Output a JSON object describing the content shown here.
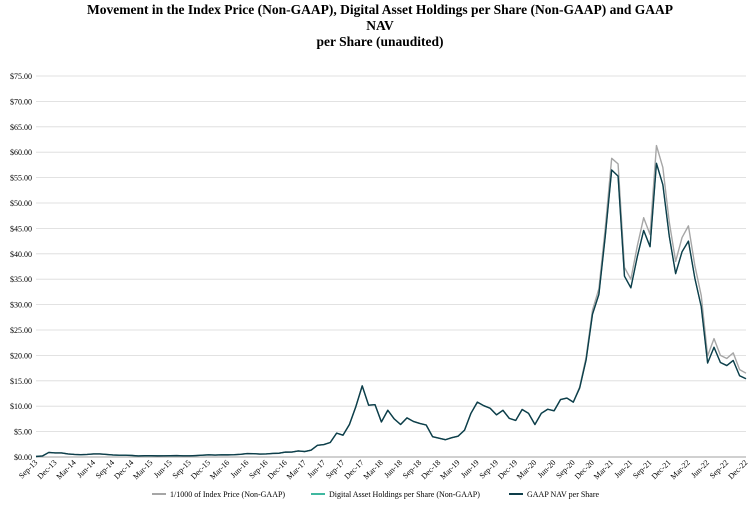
{
  "chart_data": {
    "type": "line",
    "title_lines": [
      "Movement in the Index Price (Non-GAAP), Digital Asset Holdings per Share (Non-GAAP) and GAAP",
      "NAV",
      "per Share (unaudited)"
    ],
    "xlabel": "",
    "ylabel": "",
    "ylim": [
      0,
      75
    ],
    "y_ticks": [
      0,
      5,
      10,
      15,
      20,
      25,
      30,
      35,
      40,
      45,
      50,
      55,
      60,
      65,
      70,
      75
    ],
    "y_tick_labels": [
      "$0.00",
      "$5.00",
      "$10.00",
      "$15.00",
      "$20.00",
      "$25.00",
      "$30.00",
      "$35.00",
      "$40.00",
      "$45.00",
      "$50.00",
      "$55.00",
      "$60.00",
      "$65.00",
      "$70.00",
      "$75.00"
    ],
    "x_start": "2013-09",
    "x_end": "2022-12",
    "x_tick_labels": [
      "Sep-13",
      "Dec-13",
      "Mar-14",
      "Jun-14",
      "Sep-14",
      "Dec-14",
      "Mar-15",
      "Jun-15",
      "Sep-15",
      "Dec-15",
      "Mar-16",
      "Jun-16",
      "Sep-16",
      "Dec-16",
      "Mar-17",
      "Jun-17",
      "Sep-17",
      "Dec-17",
      "Mar-18",
      "Jun-18",
      "Sep-18",
      "Dec-18",
      "Mar-19",
      "Jun-19",
      "Sep-19",
      "Dec-19",
      "Mar-20",
      "Jun-20",
      "Sep-20",
      "Dec-20",
      "Mar-21",
      "Jun-21",
      "Sep-21",
      "Dec-21",
      "Mar-22",
      "Jun-22",
      "Sep-22",
      "Dec-22"
    ],
    "grid": true,
    "legend_position": "bottom",
    "series": [
      {
        "name": "1/1000 of Index Price (Non-GAAP)",
        "color": "#a6a6a6",
        "x": [
          "2013-09",
          "2013-10",
          "2013-11",
          "2013-12",
          "2014-01",
          "2014-02",
          "2014-03",
          "2014-04",
          "2014-05",
          "2014-06",
          "2014-07",
          "2014-08",
          "2014-09",
          "2014-10",
          "2014-11",
          "2014-12",
          "2015-01",
          "2015-02",
          "2015-03",
          "2015-04",
          "2015-05",
          "2015-06",
          "2015-07",
          "2015-08",
          "2015-09",
          "2015-10",
          "2015-11",
          "2015-12",
          "2016-01",
          "2016-02",
          "2016-03",
          "2016-04",
          "2016-05",
          "2016-06",
          "2016-07",
          "2016-08",
          "2016-09",
          "2016-10",
          "2016-11",
          "2016-12",
          "2017-01",
          "2017-02",
          "2017-03",
          "2017-04",
          "2017-05",
          "2017-06",
          "2017-07",
          "2017-08",
          "2017-09",
          "2017-10",
          "2017-11",
          "2017-12",
          "2018-01",
          "2018-02",
          "2018-03",
          "2018-04",
          "2018-05",
          "2018-06",
          "2018-07",
          "2018-08",
          "2018-09",
          "2018-10",
          "2018-11",
          "2018-12",
          "2019-01",
          "2019-02",
          "2019-03",
          "2019-04",
          "2019-05",
          "2019-06",
          "2019-07",
          "2019-08",
          "2019-09",
          "2019-10",
          "2019-11",
          "2019-12",
          "2020-01",
          "2020-02",
          "2020-03",
          "2020-04",
          "2020-05",
          "2020-06",
          "2020-07",
          "2020-08",
          "2020-09",
          "2020-10",
          "2020-11",
          "2020-12",
          "2021-01",
          "2021-02",
          "2021-03",
          "2021-04",
          "2021-05",
          "2021-06",
          "2021-07",
          "2021-08",
          "2021-09",
          "2021-10",
          "2021-11",
          "2021-12",
          "2022-01",
          "2022-02",
          "2022-03",
          "2022-04",
          "2022-05",
          "2022-06",
          "2022-07",
          "2022-08",
          "2022-09",
          "2022-10",
          "2022-11",
          "2022-12"
        ],
        "y": [
          0.1,
          0.2,
          0.9,
          0.8,
          0.8,
          0.6,
          0.5,
          0.45,
          0.5,
          0.6,
          0.6,
          0.5,
          0.4,
          0.35,
          0.35,
          0.3,
          0.2,
          0.25,
          0.25,
          0.22,
          0.23,
          0.25,
          0.28,
          0.23,
          0.23,
          0.28,
          0.35,
          0.43,
          0.38,
          0.43,
          0.42,
          0.45,
          0.53,
          0.67,
          0.65,
          0.58,
          0.61,
          0.7,
          0.74,
          0.96,
          0.97,
          1.19,
          1.08,
          1.35,
          2.3,
          2.45,
          2.85,
          4.7,
          4.3,
          6.4,
          9.9,
          14.0,
          10.2,
          10.3,
          6.9,
          9.2,
          7.5,
          6.4,
          7.7,
          7.0,
          6.6,
          6.3,
          4.0,
          3.7,
          3.4,
          3.8,
          4.1,
          5.3,
          8.6,
          10.8,
          10.1,
          9.6,
          8.3,
          9.2,
          7.6,
          7.2,
          9.35,
          8.6,
          6.4,
          8.6,
          9.4,
          9.1,
          11.3,
          11.6,
          10.8,
          13.8,
          19.6,
          28.9,
          33.1,
          45.1,
          58.8,
          57.7,
          37.3,
          35.0,
          41.5,
          47.1,
          43.8,
          61.3,
          57.0,
          46.3,
          38.5,
          43.2,
          45.5,
          37.7,
          31.8,
          19.9,
          23.3,
          20.0,
          19.4,
          20.5,
          17.2,
          16.5
        ]
      },
      {
        "name": "Digital Asset Holdings per Share (Non-GAAP)",
        "color": "#3fb8a0",
        "x": [
          "2013-09",
          "2013-10",
          "2013-11",
          "2013-12",
          "2014-01",
          "2014-02",
          "2014-03",
          "2014-04",
          "2014-05",
          "2014-06",
          "2014-07",
          "2014-08",
          "2014-09",
          "2014-10",
          "2014-11",
          "2014-12",
          "2015-01",
          "2015-02",
          "2015-03",
          "2015-04",
          "2015-05",
          "2015-06",
          "2015-07",
          "2015-08",
          "2015-09",
          "2015-10",
          "2015-11",
          "2015-12",
          "2016-01",
          "2016-02",
          "2016-03",
          "2016-04",
          "2016-05",
          "2016-06",
          "2016-07",
          "2016-08",
          "2016-09",
          "2016-10",
          "2016-11",
          "2016-12",
          "2017-01",
          "2017-02",
          "2017-03",
          "2017-04",
          "2017-05",
          "2017-06",
          "2017-07",
          "2017-08",
          "2017-09",
          "2017-10",
          "2017-11",
          "2017-12",
          "2018-01",
          "2018-02",
          "2018-03",
          "2018-04",
          "2018-05",
          "2018-06",
          "2018-07",
          "2018-08",
          "2018-09",
          "2018-10",
          "2018-11",
          "2018-12",
          "2019-01",
          "2019-02",
          "2019-03",
          "2019-04",
          "2019-05",
          "2019-06",
          "2019-07",
          "2019-08",
          "2019-09",
          "2019-10",
          "2019-11",
          "2019-12",
          "2020-01",
          "2020-02",
          "2020-03",
          "2020-04",
          "2020-05",
          "2020-06",
          "2020-07",
          "2020-08",
          "2020-09",
          "2020-10",
          "2020-11",
          "2020-12",
          "2021-01",
          "2021-02",
          "2021-03",
          "2021-04",
          "2021-05",
          "2021-06",
          "2021-07",
          "2021-08",
          "2021-09",
          "2021-10",
          "2021-11",
          "2021-12",
          "2022-01",
          "2022-02",
          "2022-03",
          "2022-04",
          "2022-05",
          "2022-06",
          "2022-07",
          "2022-08",
          "2022-09",
          "2022-10",
          "2022-11",
          "2022-12"
        ],
        "y": [
          0.1,
          0.2,
          0.9,
          0.8,
          0.8,
          0.6,
          0.5,
          0.45,
          0.5,
          0.6,
          0.6,
          0.5,
          0.4,
          0.35,
          0.35,
          0.3,
          0.2,
          0.25,
          0.25,
          0.22,
          0.23,
          0.25,
          0.28,
          0.23,
          0.23,
          0.28,
          0.35,
          0.43,
          0.38,
          0.43,
          0.42,
          0.45,
          0.53,
          0.67,
          0.65,
          0.58,
          0.61,
          0.7,
          0.74,
          0.96,
          0.97,
          1.19,
          1.08,
          1.35,
          2.3,
          2.45,
          2.85,
          4.7,
          4.3,
          6.4,
          9.9,
          14.0,
          10.2,
          10.3,
          6.9,
          9.2,
          7.5,
          6.4,
          7.7,
          7.0,
          6.6,
          6.3,
          4.0,
          3.7,
          3.4,
          3.8,
          4.1,
          5.3,
          8.6,
          10.8,
          10.1,
          9.6,
          8.3,
          9.2,
          7.6,
          7.2,
          9.35,
          8.6,
          6.4,
          8.6,
          9.4,
          9.1,
          11.3,
          11.6,
          10.8,
          13.6,
          19.1,
          28.1,
          32.0,
          43.5,
          56.5,
          55.3,
          35.6,
          33.3,
          39.4,
          44.6,
          41.4,
          57.8,
          53.6,
          43.5,
          36.1,
          40.4,
          42.5,
          35.2,
          29.6,
          18.5,
          21.6,
          18.6,
          18.0,
          19.0,
          16.0,
          15.4
        ]
      },
      {
        "name": "GAAP NAV per Share",
        "color": "#0e3d4a",
        "x": [
          "2013-09",
          "2013-10",
          "2013-11",
          "2013-12",
          "2014-01",
          "2014-02",
          "2014-03",
          "2014-04",
          "2014-05",
          "2014-06",
          "2014-07",
          "2014-08",
          "2014-09",
          "2014-10",
          "2014-11",
          "2014-12",
          "2015-01",
          "2015-02",
          "2015-03",
          "2015-04",
          "2015-05",
          "2015-06",
          "2015-07",
          "2015-08",
          "2015-09",
          "2015-10",
          "2015-11",
          "2015-12",
          "2016-01",
          "2016-02",
          "2016-03",
          "2016-04",
          "2016-05",
          "2016-06",
          "2016-07",
          "2016-08",
          "2016-09",
          "2016-10",
          "2016-11",
          "2016-12",
          "2017-01",
          "2017-02",
          "2017-03",
          "2017-04",
          "2017-05",
          "2017-06",
          "2017-07",
          "2017-08",
          "2017-09",
          "2017-10",
          "2017-11",
          "2017-12",
          "2018-01",
          "2018-02",
          "2018-03",
          "2018-04",
          "2018-05",
          "2018-06",
          "2018-07",
          "2018-08",
          "2018-09",
          "2018-10",
          "2018-11",
          "2018-12",
          "2019-01",
          "2019-02",
          "2019-03",
          "2019-04",
          "2019-05",
          "2019-06",
          "2019-07",
          "2019-08",
          "2019-09",
          "2019-10",
          "2019-11",
          "2019-12",
          "2020-01",
          "2020-02",
          "2020-03",
          "2020-04",
          "2020-05",
          "2020-06",
          "2020-07",
          "2020-08",
          "2020-09",
          "2020-10",
          "2020-11",
          "2020-12",
          "2021-01",
          "2021-02",
          "2021-03",
          "2021-04",
          "2021-05",
          "2021-06",
          "2021-07",
          "2021-08",
          "2021-09",
          "2021-10",
          "2021-11",
          "2021-12",
          "2022-01",
          "2022-02",
          "2022-03",
          "2022-04",
          "2022-05",
          "2022-06",
          "2022-07",
          "2022-08",
          "2022-09",
          "2022-10",
          "2022-11",
          "2022-12"
        ],
        "y": [
          0.1,
          0.2,
          0.9,
          0.8,
          0.8,
          0.6,
          0.5,
          0.45,
          0.5,
          0.6,
          0.6,
          0.5,
          0.4,
          0.35,
          0.35,
          0.3,
          0.2,
          0.25,
          0.25,
          0.22,
          0.23,
          0.25,
          0.28,
          0.23,
          0.23,
          0.28,
          0.35,
          0.43,
          0.38,
          0.43,
          0.42,
          0.45,
          0.53,
          0.67,
          0.65,
          0.58,
          0.61,
          0.7,
          0.74,
          0.96,
          0.97,
          1.19,
          1.08,
          1.35,
          2.3,
          2.45,
          2.85,
          4.7,
          4.3,
          6.4,
          9.9,
          14.0,
          10.2,
          10.3,
          6.9,
          9.2,
          7.5,
          6.4,
          7.7,
          7.0,
          6.6,
          6.3,
          4.0,
          3.7,
          3.4,
          3.8,
          4.1,
          5.3,
          8.6,
          10.8,
          10.1,
          9.6,
          8.3,
          9.2,
          7.6,
          7.2,
          9.35,
          8.6,
          6.4,
          8.6,
          9.4,
          9.1,
          11.3,
          11.6,
          10.8,
          13.6,
          19.1,
          28.1,
          32.0,
          43.5,
          56.5,
          55.3,
          35.6,
          33.3,
          39.4,
          44.6,
          41.4,
          57.8,
          53.6,
          43.5,
          36.1,
          40.4,
          42.5,
          35.2,
          29.6,
          18.5,
          21.6,
          18.6,
          18.0,
          19.0,
          16.0,
          15.4
        ]
      }
    ]
  }
}
